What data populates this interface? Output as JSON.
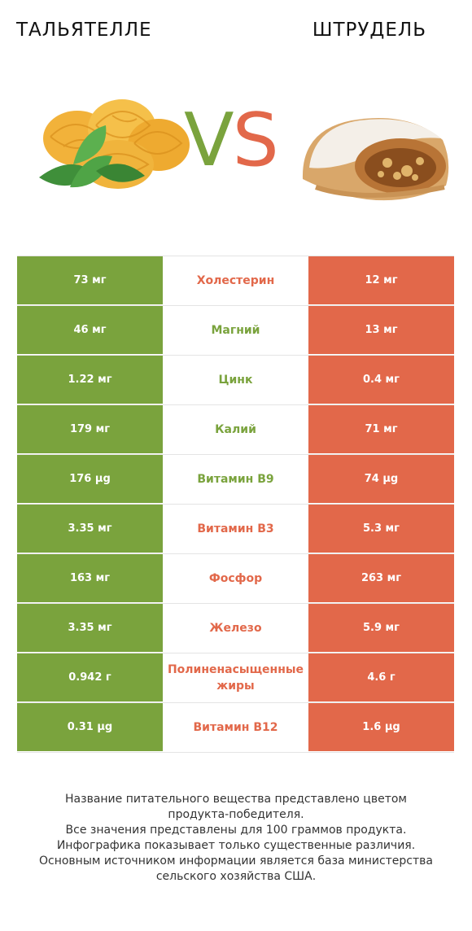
{
  "header": {
    "left_food": "ТАЛЬЯТЕЛЛЕ",
    "right_food": "ШТРУДЕЛЬ",
    "vs_v": "V",
    "vs_s": "S"
  },
  "colors": {
    "left": "#7aa33d",
    "right": "#e2684a"
  },
  "rows": [
    {
      "left": "73 мг",
      "nutrient": "Холестерин",
      "right": "12 мг",
      "winner": "right"
    },
    {
      "left": "46 мг",
      "nutrient": "Магний",
      "right": "13 мг",
      "winner": "left"
    },
    {
      "left": "1.22 мг",
      "nutrient": "Цинк",
      "right": "0.4 мг",
      "winner": "left"
    },
    {
      "left": "179 мг",
      "nutrient": "Калий",
      "right": "71 мг",
      "winner": "left"
    },
    {
      "left": "176 µg",
      "nutrient": "Витамин B9",
      "right": "74 µg",
      "winner": "left"
    },
    {
      "left": "3.35 мг",
      "nutrient": "Витамин B3",
      "right": "5.3 мг",
      "winner": "right"
    },
    {
      "left": "163 мг",
      "nutrient": "Фосфор",
      "right": "263 мг",
      "winner": "right"
    },
    {
      "left": "3.35 мг",
      "nutrient": "Железо",
      "right": "5.9 мг",
      "winner": "right"
    },
    {
      "left": "0.942 г",
      "nutrient": "Полиненасыщенные жиры",
      "right": "4.6 г",
      "winner": "right"
    },
    {
      "left": "0.31 µg",
      "nutrient": "Витамин B12",
      "right": "1.6 µg",
      "winner": "right"
    }
  ],
  "footer": [
    "Название питательного вещества представлено цветом",
    "продукта-победителя.",
    "Все значения представлены для 100 граммов продукта.",
    "Инфографика показывает только существенные различия.",
    "Основным источником информации является база министерства",
    "сельского хозяйства США."
  ]
}
